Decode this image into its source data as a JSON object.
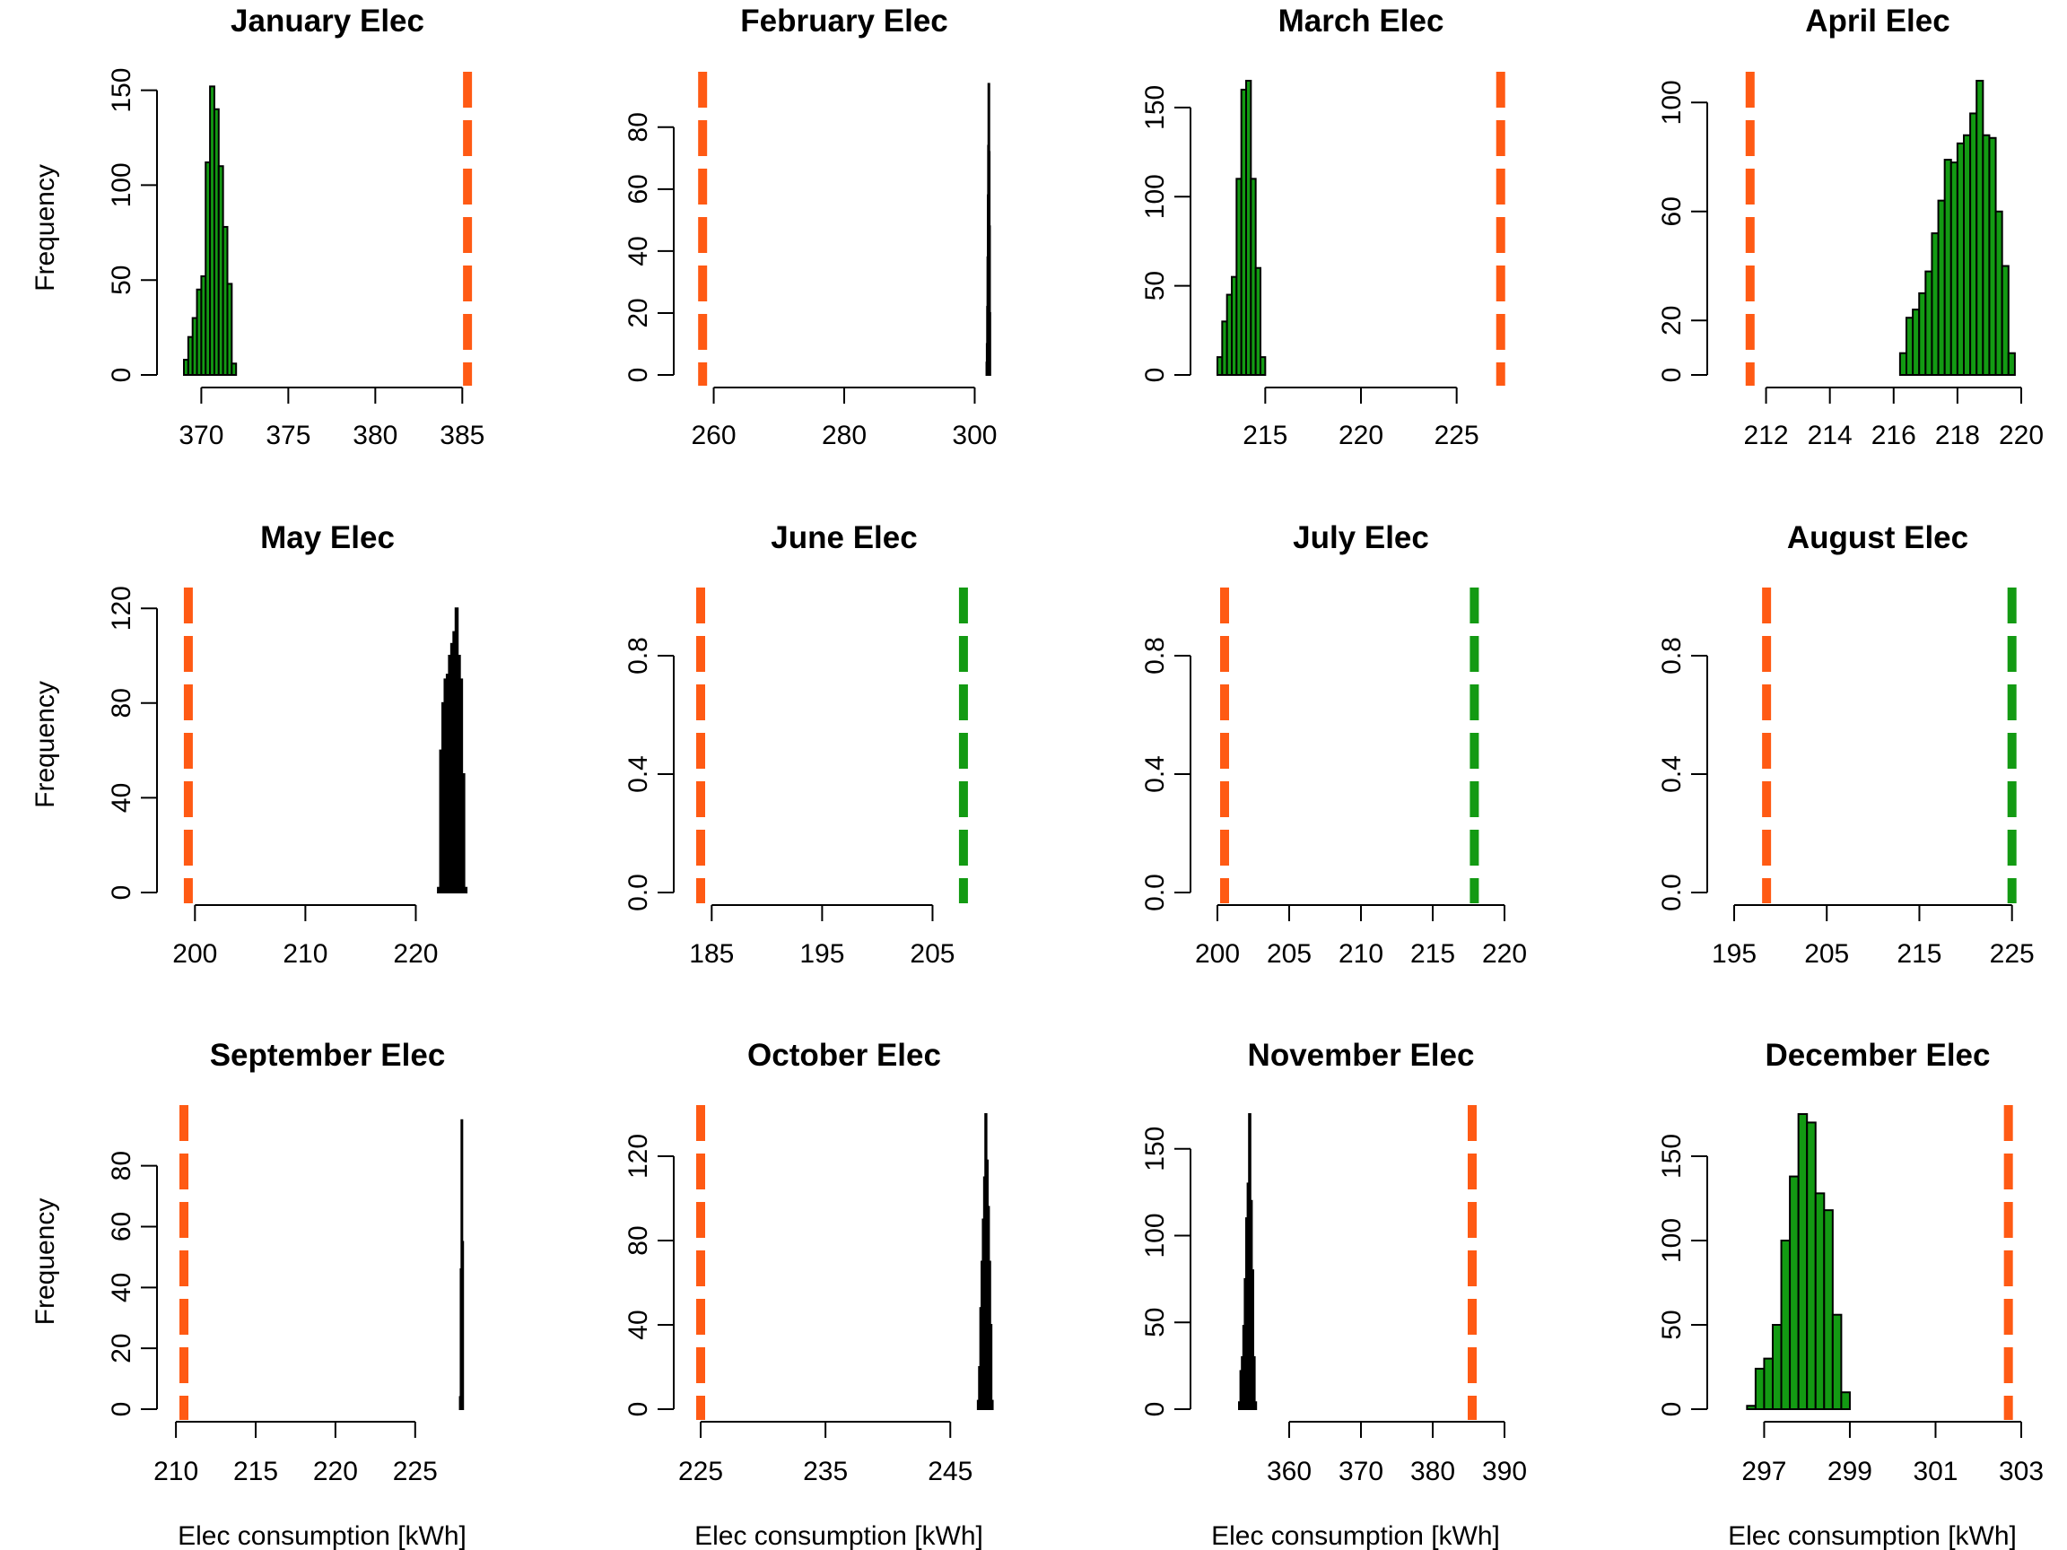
{
  "chart_data": [
    {
      "type": "bar",
      "title": "January Elec",
      "ylabel": "Frequency",
      "xlabel": "",
      "xlim": [
        369,
        385.5
      ],
      "ylim": [
        0,
        155
      ],
      "xticks": [
        370,
        375,
        380,
        385
      ],
      "yticks": [
        0,
        50,
        100,
        150
      ],
      "bin_width": 0.25,
      "bin_start": 369.0,
      "values": [
        8,
        20,
        30,
        45,
        52,
        112,
        152,
        140,
        110,
        78,
        48,
        6
      ],
      "bar_color": "#139a13",
      "lines": [
        {
          "x": 385.3,
          "color": "#ff5a14"
        }
      ]
    },
    {
      "type": "bar",
      "title": "February Elec",
      "ylabel": "",
      "xlabel": "",
      "xlim": [
        258,
        302
      ],
      "ylim": [
        0,
        95
      ],
      "xticks": [
        260,
        280,
        300
      ],
      "yticks": [
        0,
        20,
        40,
        60,
        80
      ],
      "bin_width": 0.05,
      "bin_start": 301.8,
      "values": [
        4,
        10,
        22,
        38,
        58,
        74,
        94,
        72,
        48,
        20
      ],
      "bar_color": "#000000",
      "lines": [
        {
          "x": 258.3,
          "color": "#ff5a14"
        }
      ]
    },
    {
      "type": "bar",
      "title": "March Elec",
      "ylabel": "",
      "xlabel": "",
      "xlim": [
        212.5,
        227.5
      ],
      "ylim": [
        0,
        165
      ],
      "xticks": [
        215,
        220,
        225
      ],
      "yticks": [
        0,
        50,
        100,
        150
      ],
      "bin_width": 0.25,
      "bin_start": 212.5,
      "values": [
        10,
        30,
        45,
        55,
        110,
        160,
        165,
        110,
        60,
        10
      ],
      "bar_color": "#139a13",
      "lines": [
        {
          "x": 227.3,
          "color": "#ff5a14"
        }
      ]
    },
    {
      "type": "bar",
      "title": "April Elec",
      "ylabel": "",
      "xlabel": "",
      "xlim": [
        211,
        220
      ],
      "ylim": [
        0,
        108
      ],
      "xticks": [
        212,
        214,
        216,
        218,
        220
      ],
      "yticks": [
        0,
        20,
        60,
        100
      ],
      "bin_width": 0.2,
      "bin_start": 216.2,
      "values": [
        8,
        21,
        24,
        30,
        38,
        52,
        64,
        79,
        78,
        85,
        88,
        96,
        108,
        88,
        87,
        60,
        40,
        8
      ],
      "bar_color": "#139a13",
      "lines": [
        {
          "x": 211.5,
          "color": "#ff5a14"
        }
      ]
    },
    {
      "type": "bar",
      "title": "May Elec",
      "ylabel": "Frequency",
      "xlabel": "",
      "xlim": [
        199,
        225
      ],
      "ylim": [
        0,
        125
      ],
      "xticks": [
        200,
        210,
        220
      ],
      "yticks": [
        0,
        40,
        80,
        120
      ],
      "bin_width": 0.2,
      "bin_start": 222.0,
      "values": [
        2,
        60,
        80,
        90,
        92,
        100,
        105,
        110,
        120,
        100,
        90,
        50,
        2
      ],
      "bar_color": "#000000",
      "lines": [
        {
          "x": 199.4,
          "color": "#ff5a14"
        }
      ]
    },
    {
      "type": "bar",
      "title": "June Elec",
      "ylabel": "",
      "xlabel": "",
      "xlim": [
        184,
        210
      ],
      "ylim": [
        0,
        1
      ],
      "xticks": [
        185,
        195,
        205
      ],
      "yticks": [
        0.0,
        0.4,
        0.8
      ],
      "values": [],
      "bar_color": "#000000",
      "lines": [
        {
          "x": 184.0,
          "color": "#ff5a14"
        },
        {
          "x": 207.8,
          "color": "#139a13"
        }
      ]
    },
    {
      "type": "bar",
      "title": "July Elec",
      "ylabel": "",
      "xlabel": "",
      "xlim": [
        200,
        220
      ],
      "ylim": [
        0,
        1
      ],
      "xticks": [
        200,
        205,
        210,
        215,
        220
      ],
      "yticks": [
        0.0,
        0.4,
        0.8
      ],
      "values": [],
      "bar_color": "#000000",
      "lines": [
        {
          "x": 200.5,
          "color": "#ff5a14"
        },
        {
          "x": 217.9,
          "color": "#139a13"
        }
      ]
    },
    {
      "type": "bar",
      "title": "August Elec",
      "ylabel": "",
      "xlabel": "",
      "xlim": [
        195,
        226
      ],
      "ylim": [
        0,
        1
      ],
      "xticks": [
        195,
        205,
        215,
        225
      ],
      "yticks": [
        0.0,
        0.4,
        0.8
      ],
      "values": [],
      "bar_color": "#000000",
      "lines": [
        {
          "x": 198.5,
          "color": "#ff5a14"
        },
        {
          "x": 225.0,
          "color": "#139a13"
        }
      ]
    },
    {
      "type": "bar",
      "title": "September Elec",
      "ylabel": "Frequency",
      "xlabel": "Elec consumption [kWh]",
      "xlim": [
        210.5,
        228.5
      ],
      "ylim": [
        0,
        97
      ],
      "xticks": [
        210,
        215,
        220,
        225
      ],
      "yticks": [
        0,
        20,
        40,
        60,
        80
      ],
      "bin_width": 0.05,
      "bin_start": 227.8,
      "values": [
        4,
        46,
        95,
        55
      ],
      "bar_color": "#000000",
      "lines": [
        {
          "x": 210.5,
          "color": "#ff5a14"
        }
      ]
    },
    {
      "type": "bar",
      "title": "October Elec",
      "ylabel": "",
      "xlabel": "Elec consumption [kWh]",
      "xlim": [
        225,
        248
      ],
      "ylim": [
        0,
        140
      ],
      "xticks": [
        225,
        235,
        245
      ],
      "yticks": [
        0,
        40,
        80,
        120
      ],
      "bin_width": 0.1,
      "bin_start": 247.2,
      "values": [
        4,
        20,
        48,
        70,
        90,
        110,
        140,
        118,
        96,
        70,
        40,
        4
      ],
      "bar_color": "#000000",
      "lines": [
        {
          "x": 225.0,
          "color": "#ff5a14"
        }
      ]
    },
    {
      "type": "bar",
      "title": "November Elec",
      "ylabel": "",
      "xlabel": "Elec consumption [kWh]",
      "xlim": [
        350,
        390
      ],
      "ylim": [
        0,
        170
      ],
      "xticks": [
        360,
        370,
        380,
        390
      ],
      "yticks": [
        0,
        50,
        100,
        150
      ],
      "bin_width": 0.2,
      "bin_start": 353.0,
      "values": [
        4,
        22,
        30,
        48,
        75,
        110,
        130,
        170,
        120,
        80,
        30,
        4
      ],
      "bar_color": "#000000",
      "lines": [
        {
          "x": 385.5,
          "color": "#ff5a14"
        }
      ]
    },
    {
      "type": "bar",
      "title": "December Elec",
      "ylabel": "",
      "xlabel": "Elec consumption [kWh]",
      "xlim": [
        296.3,
        303
      ],
      "ylim": [
        0,
        175
      ],
      "xticks": [
        297,
        299,
        301,
        303
      ],
      "yticks": [
        0,
        50,
        100,
        150
      ],
      "bin_width": 0.2,
      "bin_start": 296.6,
      "values": [
        2,
        24,
        30,
        50,
        100,
        138,
        175,
        170,
        128,
        118,
        56,
        10
      ],
      "bar_color": "#139a13",
      "lines": [
        {
          "x": 302.7,
          "color": "#ff5a14"
        }
      ]
    }
  ]
}
